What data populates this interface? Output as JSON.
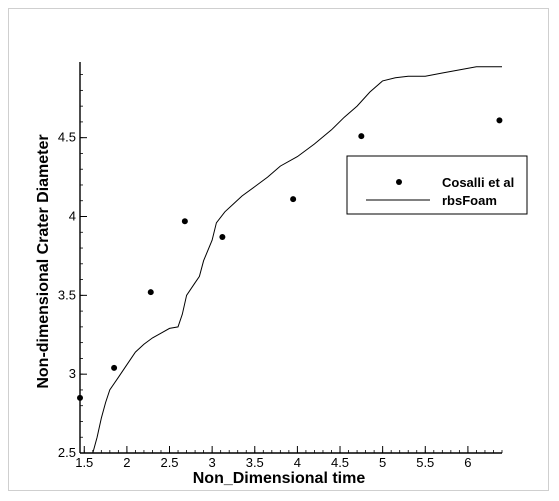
{
  "chart_data": {
    "type": "scatter",
    "xlabel": "Non_Dimensional time",
    "ylabel": "Non-dimensional Crater Diameter",
    "xlim": [
      1.45,
      6.4
    ],
    "ylim": [
      2.5,
      4.98
    ],
    "xticks": [
      1.5,
      2,
      2.5,
      3,
      3.5,
      4,
      4.5,
      5,
      5.5,
      6
    ],
    "xtick_labels": [
      "1.5",
      "2",
      "2.5",
      "3",
      "3.5",
      "4",
      "4.5",
      "5",
      "5.5",
      "6"
    ],
    "yticks": [
      2.5,
      3,
      3.5,
      4,
      4.5
    ],
    "ytick_labels": [
      "2.5",
      "3",
      "3.5",
      "4",
      "4.5"
    ],
    "x_minor_step": 0.1,
    "y_minor_step": 0.1,
    "grid": false,
    "legend_position": "right",
    "series": [
      {
        "name": "Cosalli et al",
        "style": "markers",
        "color": "#000000",
        "points": [
          [
            1.45,
            2.85
          ],
          [
            1.85,
            3.04
          ],
          [
            2.28,
            3.52
          ],
          [
            2.68,
            3.97
          ],
          [
            3.12,
            3.87
          ],
          [
            3.95,
            4.11
          ],
          [
            4.75,
            4.51
          ],
          [
            6.37,
            4.61
          ]
        ]
      },
      {
        "name": "rbsFoam",
        "style": "line",
        "color": "#000000",
        "points": [
          [
            1.6,
            2.5
          ],
          [
            1.65,
            2.6
          ],
          [
            1.7,
            2.72
          ],
          [
            1.75,
            2.82
          ],
          [
            1.8,
            2.9
          ],
          [
            1.9,
            2.98
          ],
          [
            2.0,
            3.06
          ],
          [
            2.1,
            3.14
          ],
          [
            2.2,
            3.19
          ],
          [
            2.3,
            3.23
          ],
          [
            2.4,
            3.26
          ],
          [
            2.5,
            3.29
          ],
          [
            2.6,
            3.3
          ],
          [
            2.65,
            3.38
          ],
          [
            2.7,
            3.5
          ],
          [
            2.8,
            3.58
          ],
          [
            2.85,
            3.62
          ],
          [
            2.9,
            3.72
          ],
          [
            3.0,
            3.85
          ],
          [
            3.05,
            3.96
          ],
          [
            3.15,
            4.03
          ],
          [
            3.25,
            4.08
          ],
          [
            3.35,
            4.13
          ],
          [
            3.5,
            4.19
          ],
          [
            3.65,
            4.25
          ],
          [
            3.8,
            4.32
          ],
          [
            4.0,
            4.38
          ],
          [
            4.2,
            4.46
          ],
          [
            4.4,
            4.55
          ],
          [
            4.55,
            4.63
          ],
          [
            4.7,
            4.7
          ],
          [
            4.85,
            4.79
          ],
          [
            5.0,
            4.86
          ],
          [
            5.15,
            4.88
          ],
          [
            5.3,
            4.89
          ],
          [
            5.5,
            4.89
          ],
          [
            5.7,
            4.91
          ],
          [
            5.9,
            4.93
          ],
          [
            6.1,
            4.95
          ],
          [
            6.3,
            4.95
          ],
          [
            6.4,
            4.95
          ]
        ]
      }
    ]
  }
}
